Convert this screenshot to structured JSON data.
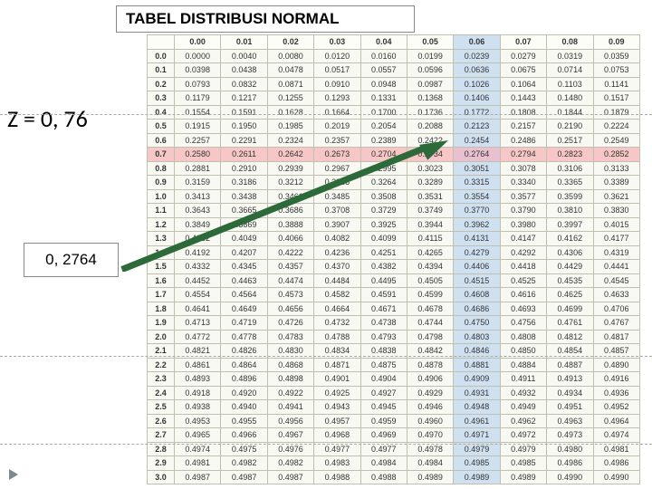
{
  "title": "TABEL DISTRIBUSI NORMAL",
  "z_label": "Z = 0, 76",
  "value_label": "0, 2764",
  "dash_lines_y": [
    126,
    393,
    490
  ],
  "highlight_row_index": 7,
  "highlight_col_index": 6,
  "col_headers": [
    "0.00",
    "0.01",
    "0.02",
    "0.03",
    "0.04",
    "0.05",
    "0.06",
    "0.07",
    "0.08",
    "0.09"
  ],
  "row_headers": [
    "0.0",
    "0.1",
    "0.2",
    "0.3",
    "0.4",
    "0.5",
    "0.6",
    "0.7",
    "0.8",
    "0.9",
    "1.0",
    "1.1",
    "1.2",
    "1.3",
    "1.4",
    "1.5",
    "1.6",
    "1.7",
    "1.8",
    "1.9",
    "2.0",
    "2.1",
    "2.2",
    "2.3",
    "2.4",
    "2.5",
    "2.6",
    "2.7",
    "2.8",
    "2.9",
    "3.0"
  ],
  "rows": [
    [
      "0.0000",
      "0.0040",
      "0.0080",
      "0.0120",
      "0.0160",
      "0.0199",
      "0.0239",
      "0.0279",
      "0.0319",
      "0.0359"
    ],
    [
      "0.0398",
      "0.0438",
      "0.0478",
      "0.0517",
      "0.0557",
      "0.0596",
      "0.0636",
      "0.0675",
      "0.0714",
      "0.0753"
    ],
    [
      "0.0793",
      "0.0832",
      "0.0871",
      "0.0910",
      "0.0948",
      "0.0987",
      "0.1026",
      "0.1064",
      "0.1103",
      "0.1141"
    ],
    [
      "0.1179",
      "0.1217",
      "0.1255",
      "0.1293",
      "0.1331",
      "0.1368",
      "0.1406",
      "0.1443",
      "0.1480",
      "0.1517"
    ],
    [
      "0.1554",
      "0.1591",
      "0.1628",
      "0.1664",
      "0.1700",
      "0.1736",
      "0.1772",
      "0.1808",
      "0.1844",
      "0.1879"
    ],
    [
      "0.1915",
      "0.1950",
      "0.1985",
      "0.2019",
      "0.2054",
      "0.2088",
      "0.2123",
      "0.2157",
      "0.2190",
      "0.2224"
    ],
    [
      "0.2257",
      "0.2291",
      "0.2324",
      "0.2357",
      "0.2389",
      "0.2422",
      "0.2454",
      "0.2486",
      "0.2517",
      "0.2549"
    ],
    [
      "0.2580",
      "0.2611",
      "0.2642",
      "0.2673",
      "0.2704",
      "0.2734",
      "0.2764",
      "0.2794",
      "0.2823",
      "0.2852"
    ],
    [
      "0.2881",
      "0.2910",
      "0.2939",
      "0.2967",
      "0.2995",
      "0.3023",
      "0.3051",
      "0.3078",
      "0.3106",
      "0.3133"
    ],
    [
      "0.3159",
      "0.3186",
      "0.3212",
      "0.3238",
      "0.3264",
      "0.3289",
      "0.3315",
      "0.3340",
      "0.3365",
      "0.3389"
    ],
    [
      "0.3413",
      "0.3438",
      "0.3461",
      "0.3485",
      "0.3508",
      "0.3531",
      "0.3554",
      "0.3577",
      "0.3599",
      "0.3621"
    ],
    [
      "0.3643",
      "0.3665",
      "0.3686",
      "0.3708",
      "0.3729",
      "0.3749",
      "0.3770",
      "0.3790",
      "0.3810",
      "0.3830"
    ],
    [
      "0.3849",
      "0.3869",
      "0.3888",
      "0.3907",
      "0.3925",
      "0.3944",
      "0.3962",
      "0.3980",
      "0.3997",
      "0.4015"
    ],
    [
      "0.4032",
      "0.4049",
      "0.4066",
      "0.4082",
      "0.4099",
      "0.4115",
      "0.4131",
      "0.4147",
      "0.4162",
      "0.4177"
    ],
    [
      "0.4192",
      "0.4207",
      "0.4222",
      "0.4236",
      "0.4251",
      "0.4265",
      "0.4279",
      "0.4292",
      "0.4306",
      "0.4319"
    ],
    [
      "0.4332",
      "0.4345",
      "0.4357",
      "0.4370",
      "0.4382",
      "0.4394",
      "0.4406",
      "0.4418",
      "0.4429",
      "0.4441"
    ],
    [
      "0.4452",
      "0.4463",
      "0.4474",
      "0.4484",
      "0.4495",
      "0.4505",
      "0.4515",
      "0.4525",
      "0.4535",
      "0.4545"
    ],
    [
      "0.4554",
      "0.4564",
      "0.4573",
      "0.4582",
      "0.4591",
      "0.4599",
      "0.4608",
      "0.4616",
      "0.4625",
      "0.4633"
    ],
    [
      "0.4641",
      "0.4649",
      "0.4656",
      "0.4664",
      "0.4671",
      "0.4678",
      "0.4686",
      "0.4693",
      "0.4699",
      "0.4706"
    ],
    [
      "0.4713",
      "0.4719",
      "0.4726",
      "0.4732",
      "0.4738",
      "0.4744",
      "0.4750",
      "0.4756",
      "0.4761",
      "0.4767"
    ],
    [
      "0.4772",
      "0.4778",
      "0.4783",
      "0.4788",
      "0.4793",
      "0.4798",
      "0.4803",
      "0.4808",
      "0.4812",
      "0.4817"
    ],
    [
      "0.4821",
      "0.4826",
      "0.4830",
      "0.4834",
      "0.4838",
      "0.4842",
      "0.4846",
      "0.4850",
      "0.4854",
      "0.4857"
    ],
    [
      "0.4861",
      "0.4864",
      "0.4868",
      "0.4871",
      "0.4875",
      "0.4878",
      "0.4881",
      "0.4884",
      "0.4887",
      "0.4890"
    ],
    [
      "0.4893",
      "0.4896",
      "0.4898",
      "0.4901",
      "0.4904",
      "0.4906",
      "0.4909",
      "0.4911",
      "0.4913",
      "0.4916"
    ],
    [
      "0.4918",
      "0.4920",
      "0.4922",
      "0.4925",
      "0.4927",
      "0.4929",
      "0.4931",
      "0.4932",
      "0.4934",
      "0.4936"
    ],
    [
      "0.4938",
      "0.4940",
      "0.4941",
      "0.4943",
      "0.4945",
      "0.4946",
      "0.4948",
      "0.4949",
      "0.4951",
      "0.4952"
    ],
    [
      "0.4953",
      "0.4955",
      "0.4956",
      "0.4957",
      "0.4959",
      "0.4960",
      "0.4961",
      "0.4962",
      "0.4963",
      "0.4964"
    ],
    [
      "0.4965",
      "0.4966",
      "0.4967",
      "0.4968",
      "0.4969",
      "0.4970",
      "0.4971",
      "0.4972",
      "0.4973",
      "0.4974"
    ],
    [
      "0.4974",
      "0.4975",
      "0.4976",
      "0.4977",
      "0.4977",
      "0.4978",
      "0.4979",
      "0.4979",
      "0.4980",
      "0.4981"
    ],
    [
      "0.4981",
      "0.4982",
      "0.4982",
      "0.4983",
      "0.4984",
      "0.4984",
      "0.4985",
      "0.4985",
      "0.4986",
      "0.4986"
    ],
    [
      "0.4987",
      "0.4987",
      "0.4987",
      "0.4988",
      "0.4988",
      "0.4989",
      "0.4989",
      "0.4989",
      "0.4990",
      "0.4990"
    ]
  ],
  "arrow": {
    "color": "#2d6a3a",
    "width": 6
  }
}
